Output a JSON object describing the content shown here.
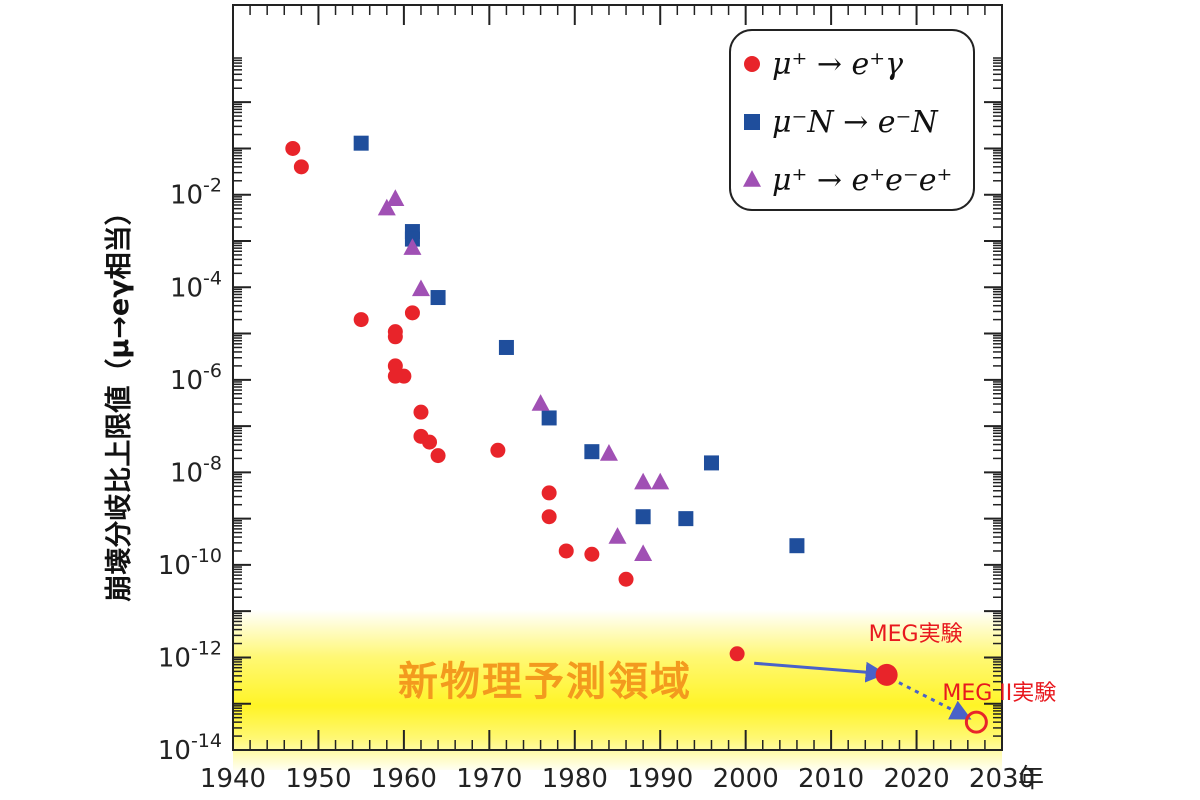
{
  "chart_data": {
    "type": "scatter",
    "title": "",
    "ylabel": "崩壊分岐比上限値（μ→eγ相当）",
    "xlabel": "",
    "x_unit_label": "年",
    "yscale": "log",
    "xlim": [
      1940,
      2030
    ],
    "ylim_exponent": [
      -14,
      0
    ],
    "x_ticks": [
      "1940",
      "1950",
      "1960",
      "1970",
      "1980",
      "1990",
      "2000",
      "2010",
      "2020",
      "2030"
    ],
    "y_tick_labels": [
      "10",
      "10",
      "10",
      "10",
      "10",
      "10",
      "10"
    ],
    "y_tick_exponents": [
      "-2",
      "-4",
      "-6",
      "-8",
      "-10",
      "-12",
      "-14"
    ],
    "legend_position": "top-right",
    "series": [
      {
        "name": "μ⁺ → e⁺γ",
        "marker": "circle",
        "color": "#e8242a",
        "points": [
          [
            1947,
            0.1
          ],
          [
            1948,
            0.04
          ],
          [
            1955,
            2e-05
          ],
          [
            1959,
            1.1e-05
          ],
          [
            1959,
            8.5e-06
          ],
          [
            1959,
            2e-06
          ],
          [
            1959,
            1.2e-06
          ],
          [
            1960,
            1.2e-06
          ],
          [
            1961,
            2.8e-05
          ],
          [
            1962,
            2e-07
          ],
          [
            1962,
            6e-08
          ],
          [
            1963,
            4.5e-08
          ],
          [
            1964,
            2.3e-08
          ],
          [
            1971,
            3e-08
          ],
          [
            1977,
            3.6e-09
          ],
          [
            1977,
            1.1e-09
          ],
          [
            1979,
            2e-10
          ],
          [
            1982,
            1.7e-10
          ],
          [
            1986,
            4.9e-11
          ],
          [
            1999,
            1.2e-12
          ]
        ]
      },
      {
        "name": "μ⁻N → e⁻N",
        "marker": "square",
        "color": "#1f4e9c",
        "points": [
          [
            1955,
            0.13
          ],
          [
            1961,
            0.0016
          ],
          [
            1961,
            0.0011
          ],
          [
            1964,
            6e-05
          ],
          [
            1972,
            5e-06
          ],
          [
            1977,
            1.5e-07
          ],
          [
            1982,
            2.8e-08
          ],
          [
            1988,
            1.1e-09
          ],
          [
            1993,
            1e-09
          ],
          [
            1996,
            1.6e-08
          ],
          [
            2006,
            2.6e-10
          ]
        ]
      },
      {
        "name": "μ⁺ → e⁺e⁻e⁺",
        "marker": "triangle",
        "color": "#a050b4",
        "points": [
          [
            1958,
            0.005
          ],
          [
            1959,
            0.008
          ],
          [
            1961,
            0.0007
          ],
          [
            1962,
            9e-05
          ],
          [
            1976,
            3e-07
          ],
          [
            1984,
            2.5e-08
          ],
          [
            1985,
            4e-10
          ],
          [
            1988,
            6e-09
          ],
          [
            1988,
            1.7e-10
          ],
          [
            1990,
            6e-09
          ]
        ]
      }
    ],
    "annotations": [
      {
        "label": "MEG実験",
        "x": 2016.5,
        "y": 4.2e-13,
        "marker": "filled-circle",
        "color": "#e8242a"
      },
      {
        "label": "MEG II実験",
        "x": 2027,
        "y": 4e-14,
        "marker": "open-circle",
        "color": "#e8242a"
      }
    ],
    "arrows": [
      {
        "from": [
          2001,
          7.5e-13
        ],
        "to": [
          2016,
          4.5e-13
        ],
        "style": "solid",
        "color": "#4a62c8"
      },
      {
        "from": [
          2017,
          3.5e-13
        ],
        "to": [
          2026,
          5e-14
        ],
        "style": "dotted",
        "color": "#4a62c8"
      }
    ],
    "region": {
      "label": "新物理予測領域",
      "y_from": 1e-14,
      "y_to": 4e-12,
      "color": "#fff200"
    }
  }
}
